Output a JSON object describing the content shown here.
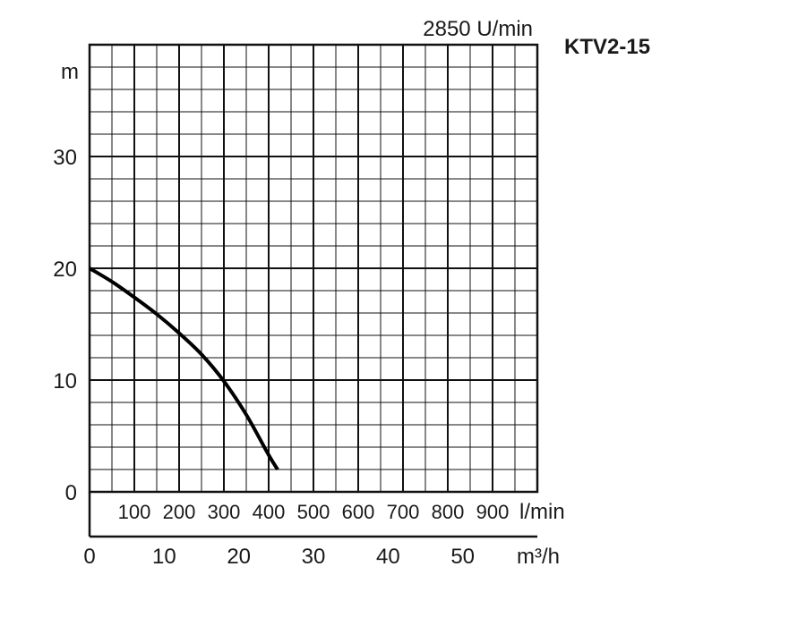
{
  "chart_data": {
    "type": "line",
    "title": "KTV2-15",
    "subtitle": "2850 U/min",
    "ylabel": "m",
    "ylim": [
      0,
      40
    ],
    "yticks": [
      0,
      10,
      20,
      30
    ],
    "grid": true,
    "x_axis_lpm": {
      "unit_label": "l/min",
      "lim": [
        0,
        1000
      ],
      "ticks": [
        100,
        200,
        300,
        400,
        500,
        600,
        700,
        800,
        900
      ]
    },
    "x_axis_m3h": {
      "unit_label": "m³/h",
      "lim": [
        0,
        60
      ],
      "ticks": [
        0,
        10,
        20,
        30,
        40,
        50
      ]
    },
    "series": [
      {
        "x_lpm": [
          0,
          50,
          100,
          150,
          200,
          250,
          300,
          350,
          400,
          420
        ],
        "y": [
          20,
          18.8,
          17.4,
          15.9,
          14.2,
          12.3,
          9.9,
          6.9,
          3.3,
          2.0
        ]
      }
    ]
  }
}
